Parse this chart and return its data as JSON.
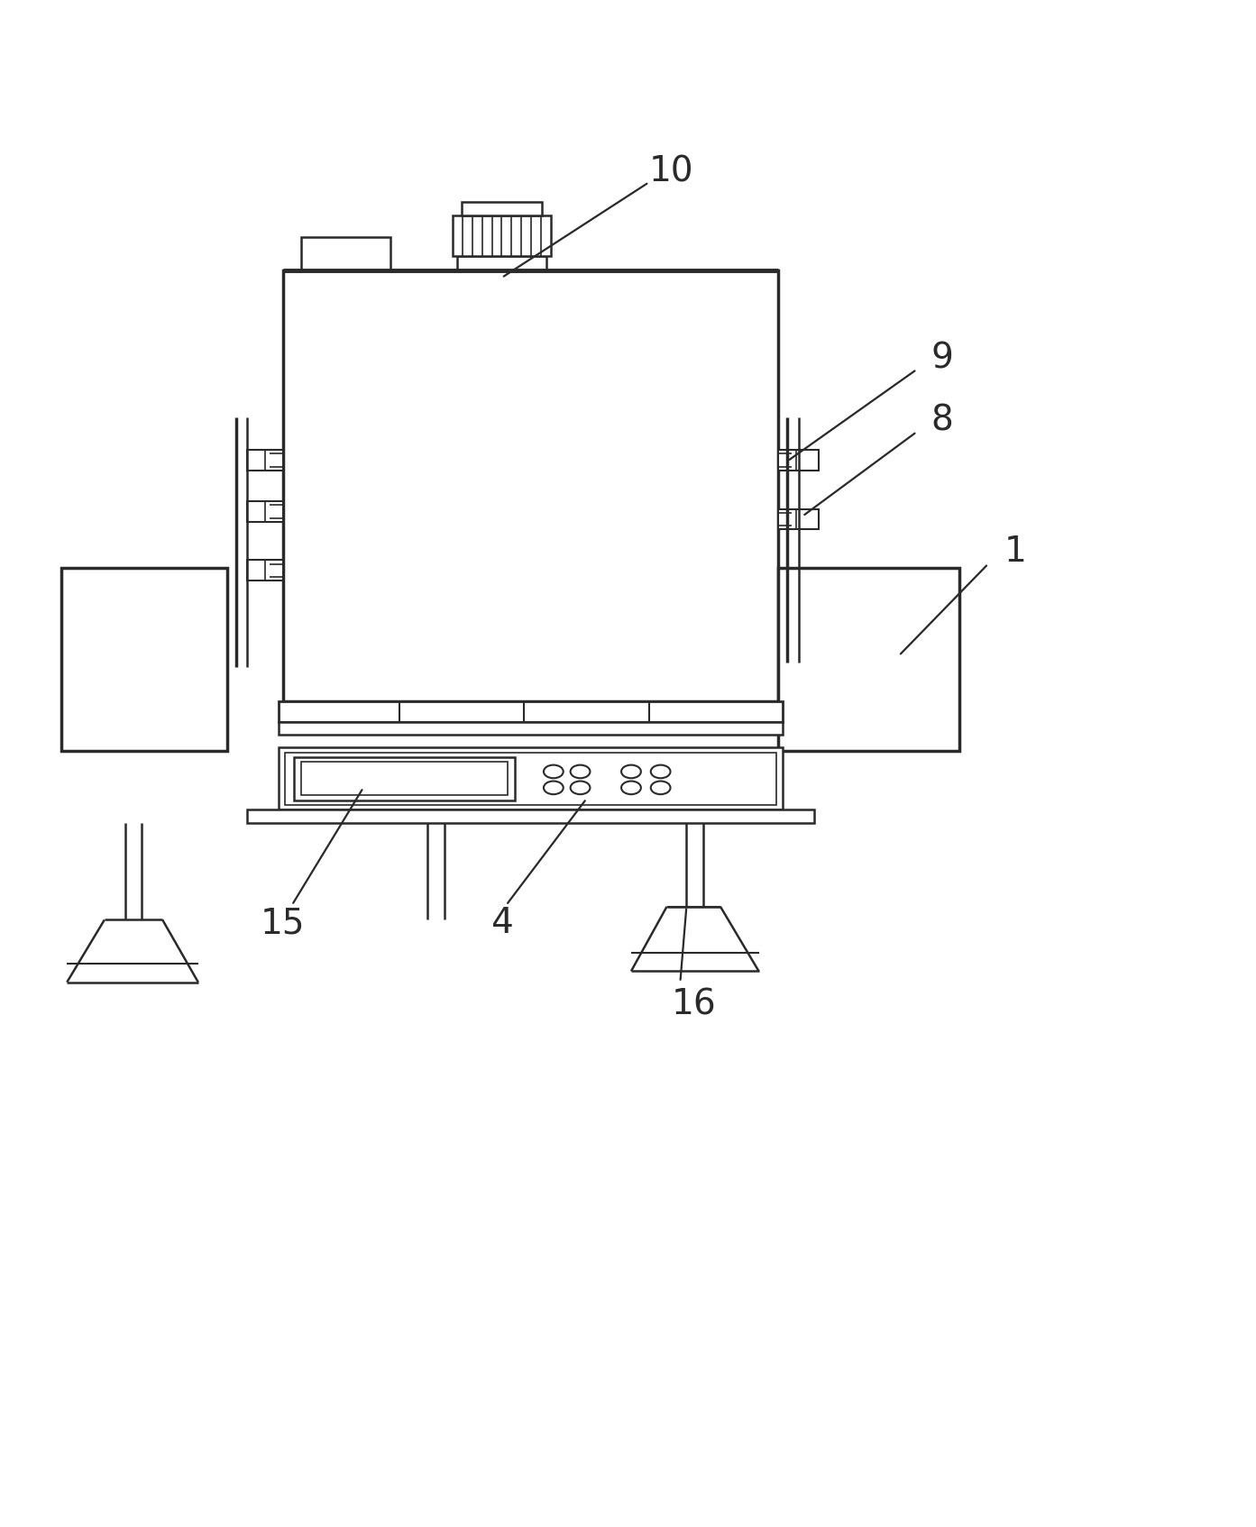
{
  "bg_color": "#ffffff",
  "line_color": "#2a2a2a",
  "lw": 1.8,
  "fig_width": 13.93,
  "fig_height": 16.94
}
